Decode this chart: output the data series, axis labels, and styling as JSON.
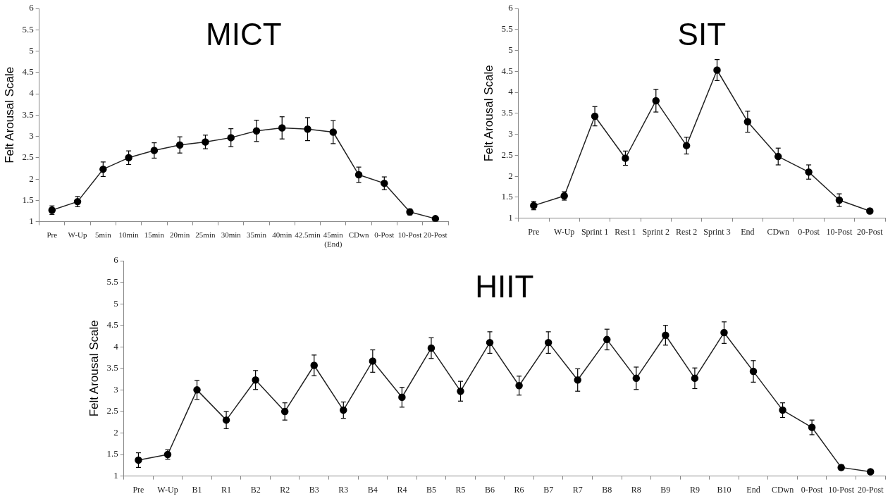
{
  "chart_data": [
    {
      "type": "line",
      "title": "MICT",
      "ylabel": "Felt Arousal Scale",
      "categories": [
        "Pre",
        "W-Up",
        "5min",
        "10min",
        "15min",
        "20min",
        "25min",
        "30min",
        "35min",
        "40min",
        "42.5min",
        "45min\n(End)",
        "CDwn",
        "0-Post",
        "10-Post",
        "20-Post"
      ],
      "values": [
        1.27,
        1.47,
        2.23,
        2.5,
        2.67,
        2.8,
        2.87,
        2.97,
        3.13,
        3.2,
        3.17,
        3.1,
        2.1,
        1.9,
        1.23,
        1.07
      ],
      "errors": [
        0.1,
        0.12,
        0.17,
        0.16,
        0.18,
        0.19,
        0.16,
        0.21,
        0.25,
        0.26,
        0.27,
        0.27,
        0.18,
        0.15,
        0.07,
        0.03
      ],
      "color": "#222222",
      "marker": "circle",
      "ylim": [
        1,
        6
      ],
      "yticks": [
        1,
        1.5,
        2,
        2.5,
        3,
        3.5,
        4,
        4.5,
        5,
        5.5,
        6
      ]
    },
    {
      "type": "line",
      "title": "SIT",
      "ylabel": "Felt Arousal Scale",
      "categories": [
        "Pre",
        "W-Up",
        "Sprint 1",
        "Rest 1",
        "Sprint 2",
        "Rest 2",
        "Sprint 3",
        "End",
        "CDwn",
        "0-Post",
        "10-Post",
        "20-Post"
      ],
      "values": [
        1.3,
        1.53,
        3.43,
        2.43,
        3.8,
        2.73,
        4.53,
        3.3,
        2.47,
        2.1,
        1.43,
        1.17
      ],
      "errors": [
        0.1,
        0.1,
        0.23,
        0.17,
        0.27,
        0.2,
        0.25,
        0.25,
        0.2,
        0.17,
        0.15,
        0.06
      ],
      "color": "#222222",
      "marker": "circle",
      "ylim": [
        1,
        6
      ],
      "yticks": [
        1,
        1.5,
        2,
        2.5,
        3,
        3.5,
        4,
        4.5,
        5,
        5.5,
        6
      ]
    },
    {
      "type": "line",
      "title": "HIIT",
      "ylabel": "Felt Arousal Scale",
      "categories": [
        "Pre",
        "W-Up",
        "B1",
        "R1",
        "B2",
        "R2",
        "B3",
        "R3",
        "B4",
        "R4",
        "B5",
        "R5",
        "B6",
        "R6",
        "B7",
        "R7",
        "B8",
        "R8",
        "B9",
        "R9",
        "B10",
        "End",
        "CDwn",
        "0-Post",
        "10-Post",
        "20-Post"
      ],
      "values": [
        1.37,
        1.5,
        3.0,
        2.3,
        3.23,
        2.5,
        3.57,
        2.53,
        3.67,
        2.83,
        3.97,
        2.97,
        4.1,
        3.1,
        4.1,
        3.23,
        4.17,
        3.27,
        4.27,
        3.27,
        4.33,
        3.43,
        2.53,
        2.13,
        1.2,
        1.1
      ],
      "errors": [
        0.17,
        0.11,
        0.22,
        0.2,
        0.22,
        0.2,
        0.24,
        0.19,
        0.26,
        0.23,
        0.24,
        0.23,
        0.25,
        0.22,
        0.25,
        0.26,
        0.24,
        0.26,
        0.23,
        0.24,
        0.25,
        0.25,
        0.17,
        0.17,
        0.06,
        0.04
      ],
      "color": "#222222",
      "marker": "circle",
      "ylim": [
        1,
        6
      ],
      "yticks": [
        1,
        1.5,
        2,
        2.5,
        3,
        3.5,
        4,
        4.5,
        5,
        5.5,
        6
      ]
    }
  ]
}
